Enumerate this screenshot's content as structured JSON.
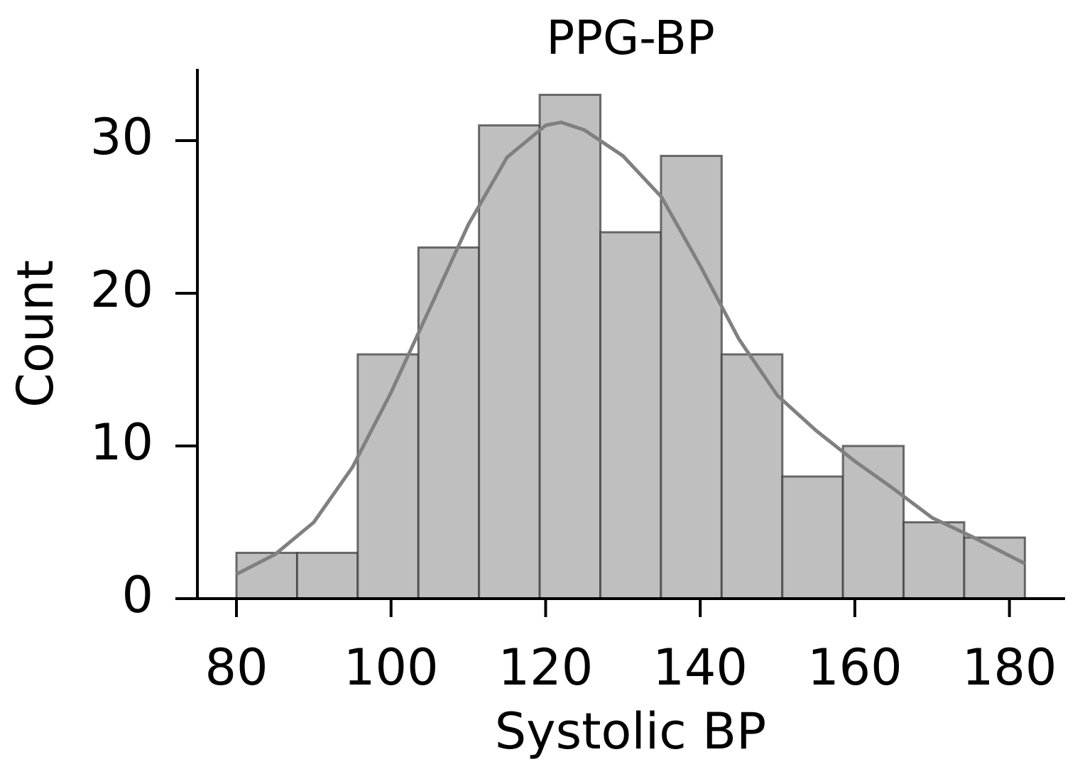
{
  "chart_data": {
    "type": "histogram",
    "title": "PPG-BP",
    "x_label": "Systolic BP",
    "y_label": "Count",
    "bins": [
      80,
      87.85,
      95.69,
      103.54,
      111.38,
      119.23,
      127.08,
      134.92,
      142.77,
      150.62,
      158.46,
      166.31,
      174.15,
      182
    ],
    "counts": [
      3,
      3,
      16,
      23,
      31,
      33,
      24,
      29,
      16,
      8,
      10,
      5,
      4
    ],
    "color": "#bfbfbf",
    "edgecolor": "#404040",
    "kde": {
      "x": [
        80,
        85,
        90,
        95,
        100,
        105,
        110,
        115,
        120,
        122,
        125,
        130,
        135,
        140,
        145,
        150,
        155,
        160,
        165,
        170,
        175,
        182
      ],
      "values": [
        1.6,
        2.9,
        5.0,
        8.6,
        13.5,
        19.0,
        24.5,
        28.9,
        31.0,
        31.2,
        30.7,
        29.0,
        26.3,
        21.8,
        17.0,
        13.3,
        11.0,
        9.0,
        7.2,
        5.3,
        4.1,
        2.3
      ],
      "color": "#808080"
    },
    "xlim": [
      72.1,
      187.2
    ],
    "ylim": [
      0,
      34.7
    ],
    "xticks": [
      80,
      100,
      120,
      140,
      160,
      180
    ],
    "yticks": [
      0,
      10,
      20,
      30
    ]
  }
}
